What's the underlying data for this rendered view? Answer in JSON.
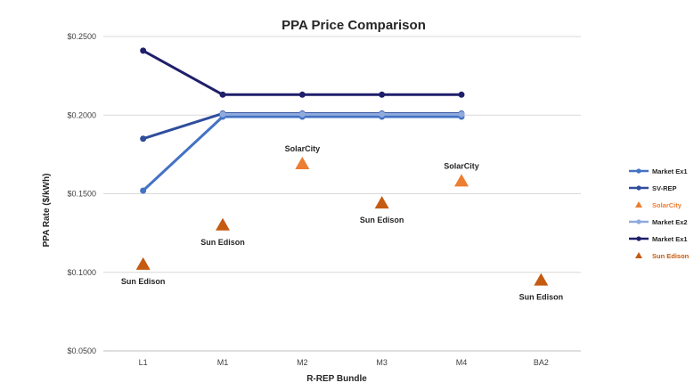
{
  "chart_data": {
    "type": "line",
    "title": "PPA Price Comparison",
    "xlabel": "R-REP Bundle",
    "ylabel": "PPA Rate ($/kWh)",
    "categories": [
      "L1",
      "M1",
      "M2",
      "M3",
      "M4",
      "BA2"
    ],
    "ylim": [
      0.05,
      0.25
    ],
    "yticks": [
      "$0.0500",
      "$0.1000",
      "$0.1500",
      "$0.2000",
      "$0.2500"
    ],
    "ytick_values": [
      0.05,
      0.1,
      0.15,
      0.2,
      0.25
    ],
    "grid": true,
    "legend_position": "right",
    "series": [
      {
        "name": "Market Ex1",
        "kind": "line",
        "color": "#4472c4",
        "values": [
          0.152,
          0.199,
          0.199,
          0.199,
          0.199,
          null
        ]
      },
      {
        "name": "SV-REP",
        "kind": "line",
        "color": "#2f4d9c",
        "values": [
          0.185,
          0.201,
          0.201,
          0.201,
          0.201,
          null
        ]
      },
      {
        "name": "SolarCity",
        "kind": "marker",
        "color": "#ed7d31",
        "values": [
          null,
          null,
          0.169,
          null,
          0.158,
          null
        ]
      },
      {
        "name": "Market Ex2",
        "kind": "line",
        "color": "#8faadc",
        "values": [
          null,
          0.2005,
          0.2005,
          0.2005,
          0.2005,
          null
        ]
      },
      {
        "name": "Market Ex1",
        "kind": "line",
        "color": "#1f1f6b",
        "values": [
          0.241,
          0.213,
          0.213,
          0.213,
          0.213,
          null
        ]
      },
      {
        "name": "Sun Edison",
        "kind": "marker",
        "color": "#c55a11",
        "values": [
          0.105,
          0.13,
          null,
          0.144,
          null,
          0.095
        ]
      }
    ],
    "annotations": [
      {
        "text": "Sun Edison",
        "category": "L1",
        "value": 0.105,
        "position": "below"
      },
      {
        "text": "Sun Edison",
        "category": "M1",
        "value": 0.13,
        "position": "below"
      },
      {
        "text": "SolarCity",
        "category": "M2",
        "value": 0.169,
        "position": "above"
      },
      {
        "text": "Sun Edison",
        "category": "M3",
        "value": 0.144,
        "position": "below"
      },
      {
        "text": "SolarCity",
        "category": "M4",
        "value": 0.158,
        "position": "above"
      },
      {
        "text": "Sun Edison",
        "category": "BA2",
        "value": 0.095,
        "position": "below"
      }
    ]
  }
}
